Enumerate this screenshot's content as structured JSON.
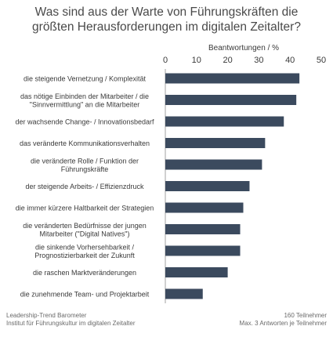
{
  "chart_data": {
    "type": "bar",
    "orientation": "horizontal",
    "title": [
      "Was sind aus der Warte von Führungskräften die",
      "größten Herausforderungen  im digitalen Zeitalter?"
    ],
    "xlabel": "Beantwortungen / %",
    "xlim": [
      0,
      50
    ],
    "xticks": [
      "0",
      "10",
      "20",
      "30",
      "40",
      "50"
    ],
    "xtick_values": [
      0,
      10,
      20,
      30,
      40,
      50
    ],
    "grid": false,
    "bar_color": "#3b4a5e",
    "categories": [
      [
        "die steigende Vernetzung / Komplexität"
      ],
      [
        "das nötige Einbinden der Mitarbeiter / die",
        "\"Sinnvermittlung\" an die Mitarbeiter"
      ],
      [
        "der wachsende Change- / Innovationsbedarf"
      ],
      [
        "das veränderte Kommunikationsverhalten"
      ],
      [
        "die veränderte Rolle / Funktion der",
        "Führungskräfte"
      ],
      [
        "der steigende Arbeits- / Effizienzdruck"
      ],
      [
        "die immer kürzere Haltbarkeit der Strategien"
      ],
      [
        "die veränderten Bedürfnisse der jungen",
        "Mitarbeiter (\"Digital Natives\")"
      ],
      [
        "die sinkende Vorhersehbarkeit /",
        "Prognostizierbarkeit der Zukunft"
      ],
      [
        "die raschen Marktveränderungen"
      ],
      [
        "die zunehmende Team- und Projektarbeit"
      ]
    ],
    "values": [
      43,
      42,
      38,
      32,
      31,
      27,
      25,
      24,
      24,
      20,
      12
    ]
  },
  "footer": {
    "left_line1": "Leadership-Trend  Barometer",
    "left_line2": "Institut für Führungskultur  im digitalen Zeitalter",
    "right_line1": "160 Teilnehmer",
    "right_line2": "Max. 3 Antworten je Teilnehmer"
  }
}
